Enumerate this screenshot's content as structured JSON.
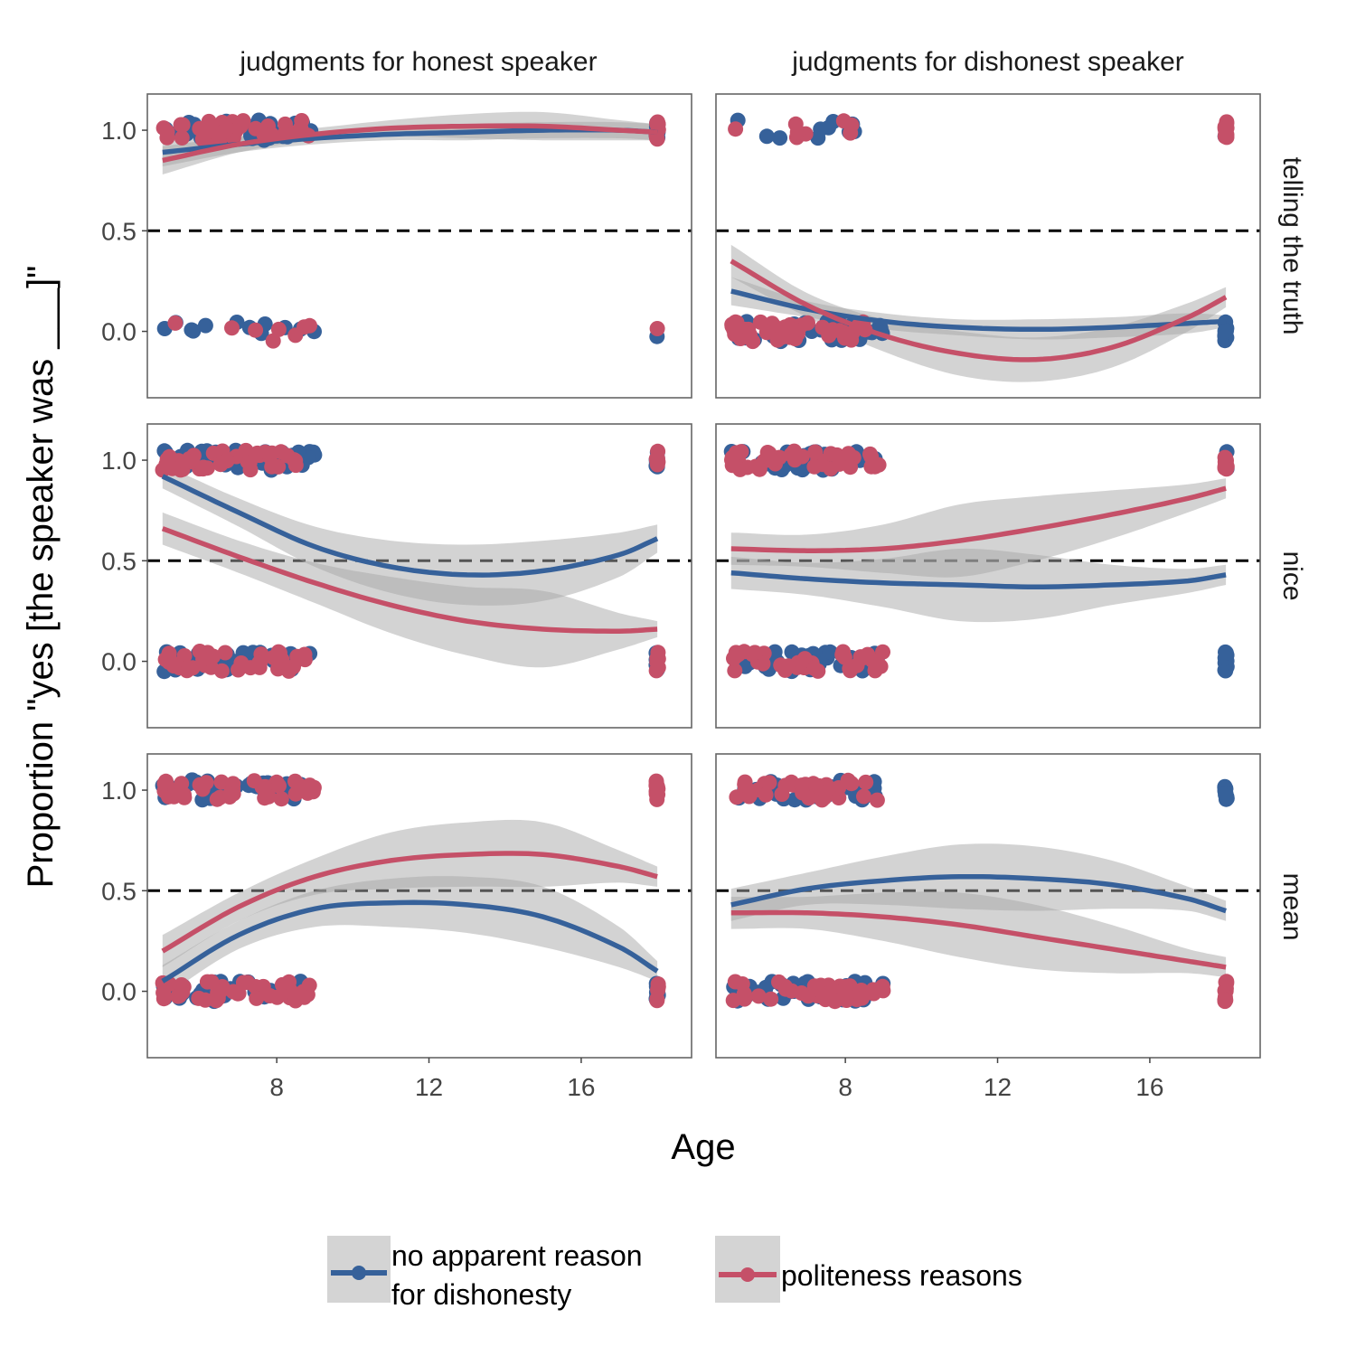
{
  "chart_data": {
    "type": "scatter",
    "xlabel": "Age",
    "ylabel": "Proportion \"yes [the speaker was ___]\"",
    "x_ticks": [
      8,
      12,
      16
    ],
    "y_ticks": [
      "0.0",
      "0.5",
      "1.0"
    ],
    "xlim": [
      4.6,
      18.9
    ],
    "ylim": [
      -0.33,
      1.18
    ],
    "reference_line": 0.5,
    "columns": [
      "judgments for honest speaker",
      "judgments for dishonest speaker"
    ],
    "rows": [
      "telling the truth",
      "nice",
      "mean"
    ],
    "legend": {
      "position": "bottom",
      "entries": [
        {
          "key": "no_reason",
          "label_lines": [
            "no apparent reason",
            "for dishonesty"
          ],
          "color": "#36619a"
        },
        {
          "key": "politeness",
          "label_lines": [
            "politeness reasons"
          ],
          "color": "#c55068"
        }
      ]
    },
    "colors": {
      "no_reason": "#36619a",
      "politeness": "#c55068",
      "band": "#a8a8a8"
    },
    "fit_x": [
      5,
      7,
      9,
      11,
      13,
      15,
      17,
      18
    ],
    "panels": [
      {
        "row": 0,
        "col": 0,
        "no_reason": {
          "fit": [
            0.89,
            0.93,
            0.96,
            0.98,
            0.99,
            1.0,
            1.0,
            0.99
          ],
          "lo": [
            0.82,
            0.89,
            0.93,
            0.95,
            0.95,
            0.96,
            0.96,
            0.95
          ],
          "hi": [
            0.96,
            0.97,
            0.99,
            1.01,
            1.03,
            1.04,
            1.04,
            1.03
          ],
          "dots_children": {
            "x_range": [
              5,
              9
            ],
            "n_one": 40,
            "n_zero": 12
          },
          "dots_adults": {
            "n_one": 12,
            "n_zero": 1
          }
        },
        "politeness": {
          "fit": [
            0.85,
            0.93,
            0.98,
            1.01,
            1.02,
            1.02,
            1.0,
            0.99
          ],
          "lo": [
            0.78,
            0.89,
            0.95,
            0.97,
            0.96,
            0.95,
            0.95,
            0.95
          ],
          "hi": [
            0.92,
            0.97,
            1.01,
            1.05,
            1.08,
            1.09,
            1.05,
            1.03
          ],
          "dots_children": {
            "x_range": [
              5,
              8.9
            ],
            "n_one": 40,
            "n_zero": 8
          },
          "dots_adults": {
            "n_one": 12,
            "n_zero": 1
          }
        }
      },
      {
        "row": 0,
        "col": 1,
        "no_reason": {
          "fit": [
            0.2,
            0.11,
            0.05,
            0.02,
            0.01,
            0.02,
            0.04,
            0.05
          ],
          "lo": [
            0.13,
            0.07,
            0.01,
            -0.02,
            -0.04,
            -0.03,
            -0.01,
            0.02
          ],
          "hi": [
            0.27,
            0.15,
            0.09,
            0.06,
            0.06,
            0.07,
            0.09,
            0.08
          ],
          "dots_children": {
            "x_range": [
              5,
              9
            ],
            "n_one": 10,
            "n_zero": 40
          },
          "dots_adults": {
            "n_one": 1,
            "n_zero": 12
          }
        },
        "politeness": {
          "fit": [
            0.35,
            0.13,
            -0.02,
            -0.11,
            -0.14,
            -0.08,
            0.07,
            0.17
          ],
          "lo": [
            0.27,
            0.07,
            -0.1,
            -0.22,
            -0.25,
            -0.18,
            0.0,
            0.12
          ],
          "hi": [
            0.43,
            0.19,
            0.06,
            0.0,
            -0.03,
            0.02,
            0.14,
            0.22
          ],
          "dots_children": {
            "x_range": [
              5,
              8.6
            ],
            "n_one": 8,
            "n_zero": 40
          },
          "dots_adults": {
            "n_one": 12,
            "n_zero": 0
          }
        }
      },
      {
        "row": 1,
        "col": 0,
        "no_reason": {
          "fit": [
            0.92,
            0.74,
            0.57,
            0.47,
            0.43,
            0.45,
            0.53,
            0.61
          ],
          "lo": [
            0.86,
            0.67,
            0.47,
            0.34,
            0.28,
            0.3,
            0.42,
            0.54
          ],
          "hi": [
            0.98,
            0.81,
            0.67,
            0.6,
            0.58,
            0.6,
            0.64,
            0.68
          ],
          "dots_children": {
            "x_range": [
              5,
              9
            ],
            "n_one": 40,
            "n_zero": 40
          },
          "dots_adults": {
            "n_one": 8,
            "n_zero": 6
          }
        },
        "politeness": {
          "fit": [
            0.66,
            0.52,
            0.39,
            0.28,
            0.2,
            0.16,
            0.15,
            0.16
          ],
          "lo": [
            0.58,
            0.44,
            0.29,
            0.14,
            0.03,
            -0.03,
            0.06,
            0.12
          ],
          "hi": [
            0.74,
            0.6,
            0.49,
            0.42,
            0.37,
            0.35,
            0.24,
            0.2
          ],
          "dots_children": {
            "x_range": [
              5,
              8.9
            ],
            "n_one": 40,
            "n_zero": 40
          },
          "dots_adults": {
            "n_one": 6,
            "n_zero": 8
          }
        }
      },
      {
        "row": 1,
        "col": 1,
        "no_reason": {
          "fit": [
            0.44,
            0.41,
            0.39,
            0.38,
            0.37,
            0.38,
            0.4,
            0.43
          ],
          "lo": [
            0.36,
            0.33,
            0.27,
            0.2,
            0.21,
            0.28,
            0.34,
            0.38
          ],
          "hi": [
            0.52,
            0.49,
            0.51,
            0.56,
            0.53,
            0.48,
            0.46,
            0.48
          ],
          "dots_children": {
            "x_range": [
              5,
              9
            ],
            "n_one": 40,
            "n_zero": 40
          },
          "dots_adults": {
            "n_one": 4,
            "n_zero": 12
          }
        },
        "politeness": {
          "fit": [
            0.56,
            0.55,
            0.56,
            0.6,
            0.66,
            0.73,
            0.81,
            0.86
          ],
          "lo": [
            0.48,
            0.47,
            0.44,
            0.42,
            0.5,
            0.61,
            0.74,
            0.81
          ],
          "hi": [
            0.64,
            0.63,
            0.68,
            0.78,
            0.82,
            0.85,
            0.88,
            0.91
          ],
          "dots_children": {
            "x_range": [
              5,
              9
            ],
            "n_one": 40,
            "n_zero": 40
          },
          "dots_adults": {
            "n_one": 12,
            "n_zero": 0
          }
        }
      },
      {
        "row": 2,
        "col": 0,
        "no_reason": {
          "fit": [
            0.05,
            0.28,
            0.41,
            0.44,
            0.43,
            0.37,
            0.22,
            0.1
          ],
          "lo": [
            -0.03,
            0.21,
            0.32,
            0.32,
            0.29,
            0.22,
            0.12,
            0.05
          ],
          "hi": [
            0.13,
            0.35,
            0.5,
            0.56,
            0.57,
            0.52,
            0.32,
            0.15
          ],
          "dots_children": {
            "x_range": [
              5,
              9
            ],
            "n_one": 40,
            "n_zero": 40
          },
          "dots_adults": {
            "n_one": 0,
            "n_zero": 10
          }
        },
        "politeness": {
          "fit": [
            0.2,
            0.42,
            0.57,
            0.65,
            0.68,
            0.68,
            0.62,
            0.57
          ],
          "lo": [
            0.12,
            0.35,
            0.48,
            0.51,
            0.52,
            0.52,
            0.54,
            0.52
          ],
          "hi": [
            0.28,
            0.49,
            0.66,
            0.79,
            0.84,
            0.84,
            0.7,
            0.62
          ],
          "dots_children": {
            "x_range": [
              5,
              9
            ],
            "n_one": 40,
            "n_zero": 40
          },
          "dots_adults": {
            "n_one": 10,
            "n_zero": 6
          }
        }
      },
      {
        "row": 2,
        "col": 1,
        "no_reason": {
          "fit": [
            0.43,
            0.51,
            0.55,
            0.57,
            0.56,
            0.53,
            0.46,
            0.4
          ],
          "lo": [
            0.35,
            0.43,
            0.43,
            0.41,
            0.4,
            0.41,
            0.4,
            0.35
          ],
          "hi": [
            0.51,
            0.59,
            0.67,
            0.73,
            0.72,
            0.65,
            0.52,
            0.45
          ],
          "dots_children": {
            "x_range": [
              5,
              9
            ],
            "n_one": 40,
            "n_zero": 40
          },
          "dots_adults": {
            "n_one": 12,
            "n_zero": 0
          }
        },
        "politeness": {
          "fit": [
            0.39,
            0.39,
            0.37,
            0.33,
            0.27,
            0.21,
            0.15,
            0.12
          ],
          "lo": [
            0.31,
            0.31,
            0.25,
            0.17,
            0.11,
            0.09,
            0.09,
            0.07
          ],
          "hi": [
            0.47,
            0.47,
            0.49,
            0.49,
            0.43,
            0.33,
            0.21,
            0.17
          ],
          "dots_children": {
            "x_range": [
              5,
              9
            ],
            "n_one": 40,
            "n_zero": 40
          },
          "dots_adults": {
            "n_one": 0,
            "n_zero": 12
          }
        }
      }
    ]
  }
}
